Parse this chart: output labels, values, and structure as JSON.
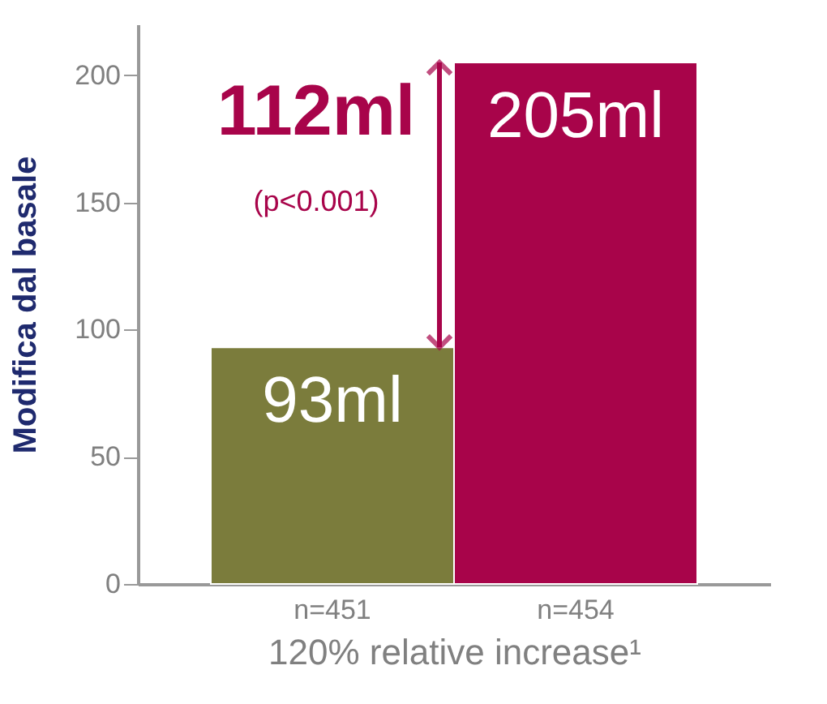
{
  "chart_data": {
    "type": "bar",
    "categories": [
      "n=451",
      "n=454"
    ],
    "values": [
      93,
      205
    ],
    "colors": [
      "#7b7c3c",
      "#a8044a"
    ],
    "value_labels": [
      "93ml",
      "205ml"
    ],
    "xlabel": "120% relative increase¹",
    "ylabel": "Modifica dal basale",
    "ylim": [
      0,
      220
    ],
    "yticks": [
      0,
      50,
      100,
      150,
      200
    ],
    "annotations": [
      "112ml",
      "(p<0.001)"
    ],
    "grid": false
  }
}
